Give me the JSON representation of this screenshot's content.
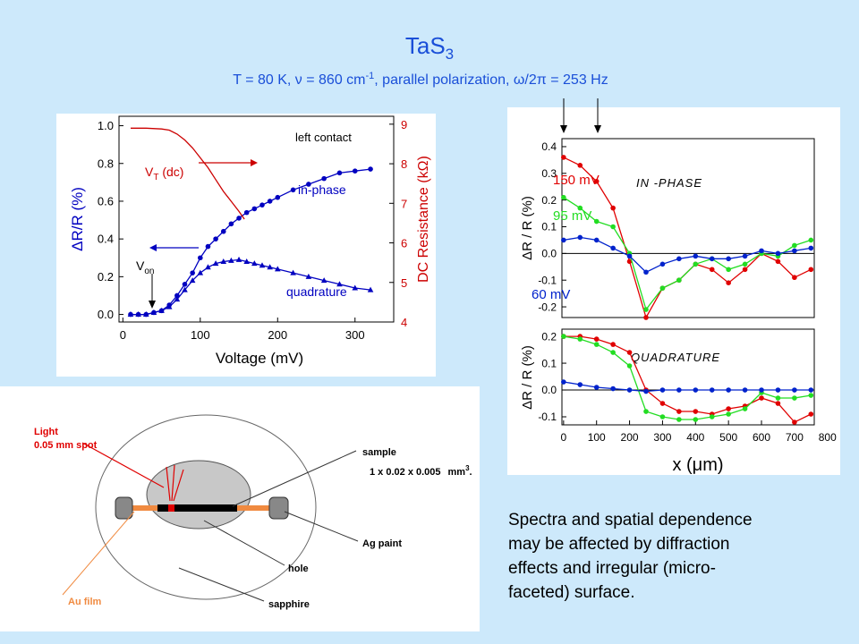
{
  "slide": {
    "title": [
      "TaS",
      "3"
    ],
    "subtitle": [
      "T = 80 K, ν = 860 cm",
      "-1",
      ", parallel polarization, ω/2π = 253 Hz"
    ]
  },
  "chart_data": [
    {
      "type": "line",
      "xlabel": "Voltage (mV)",
      "ylabel": "ΔR/R (%)",
      "y2label": "DC Resistance (kΩ)",
      "xlim": [
        -5,
        350
      ],
      "xticks": [
        0,
        100,
        200,
        300
      ],
      "ylim": [
        -0.04,
        1.05
      ],
      "yticks": [
        {
          "value": 0,
          "label": "0.0"
        },
        {
          "value": 0.2,
          "label": "0.2"
        },
        {
          "value": 0.4,
          "label": "0.4"
        },
        {
          "value": 0.6,
          "label": "0.6"
        },
        {
          "value": 0.8,
          "label": "0.8"
        },
        {
          "value": 1,
          "label": "1.0"
        }
      ],
      "y2lim": [
        4,
        9.2
      ],
      "y2ticks": [
        4,
        5,
        6,
        7,
        8,
        9
      ],
      "annotations": {
        "left_contact": "left contact",
        "vt": [
          "V",
          "T",
          " (dc)"
        ],
        "von": [
          "V",
          "on"
        ]
      },
      "x": [
        10,
        20,
        30,
        40,
        50,
        60,
        70,
        80,
        90,
        100,
        110,
        120,
        130,
        140,
        150,
        160,
        170,
        180,
        190,
        200,
        220,
        240,
        260,
        280,
        300,
        320
      ],
      "series": [
        {
          "name": "in-phase",
          "color": "#0000c0",
          "marker": "circle",
          "values": [
            0,
            0,
            0,
            0.01,
            0.02,
            0.05,
            0.1,
            0.16,
            0.22,
            0.3,
            0.36,
            0.4,
            0.44,
            0.48,
            0.51,
            0.54,
            0.56,
            0.58,
            0.6,
            0.62,
            0.66,
            0.69,
            0.72,
            0.75,
            0.76,
            0.77
          ]
        },
        {
          "name": "quadrature",
          "color": "#0000c0",
          "marker": "triangle",
          "values": [
            0,
            0,
            0,
            0.01,
            0.02,
            0.04,
            0.08,
            0.13,
            0.18,
            0.22,
            0.25,
            0.27,
            0.28,
            0.285,
            0.29,
            0.28,
            0.27,
            0.26,
            0.25,
            0.24,
            0.22,
            0.2,
            0.18,
            0.16,
            0.14,
            0.13
          ]
        },
        {
          "color": "#cc0000",
          "axis": "y2",
          "marker": "none",
          "x": [
            10,
            30,
            50,
            60,
            70,
            80,
            90,
            100,
            110,
            120,
            130,
            140,
            150,
            157
          ],
          "values": [
            8.9,
            8.9,
            8.88,
            8.85,
            8.75,
            8.6,
            8.4,
            8.15,
            7.9,
            7.6,
            7.3,
            7.05,
            6.8,
            6.6
          ]
        }
      ]
    },
    {
      "type": "line",
      "title": "IN -PHASE",
      "ylabel": "ΔR / R (%)",
      "zero_line": true,
      "xlim": [
        -5,
        760
      ],
      "ylim": [
        -0.24,
        0.43
      ],
      "yticks": [
        0.4,
        0.3,
        0.2,
        0.1,
        {
          "value": 0,
          "label": "0.0"
        },
        -0.1,
        -0.2
      ],
      "x": [
        0,
        50,
        100,
        150,
        200,
        250,
        300,
        350,
        400,
        450,
        500,
        550,
        600,
        650,
        700,
        750
      ],
      "series": [
        {
          "name": "150 mV",
          "color": "#e00000",
          "marker": "circle",
          "values": [
            0.36,
            0.33,
            0.27,
            0.17,
            -0.03,
            -0.24,
            -0.13,
            -0.1,
            -0.04,
            -0.06,
            -0.11,
            -0.06,
            0,
            -0.03,
            -0.09,
            -0.06
          ]
        },
        {
          "name": "95 mV",
          "color": "#22dd22",
          "marker": "circle",
          "values": [
            0.21,
            0.17,
            0.12,
            0.1,
            0,
            -0.21,
            -0.13,
            -0.1,
            -0.04,
            -0.02,
            -0.06,
            -0.04,
            0,
            -0.01,
            0.03,
            0.05
          ]
        },
        {
          "name": "60 mV",
          "color": "#0022cc",
          "marker": "circle",
          "values": [
            0.05,
            0.06,
            0.05,
            0.02,
            -0.01,
            -0.07,
            -0.04,
            -0.02,
            -0.01,
            -0.02,
            -0.02,
            -0.01,
            0.01,
            0,
            0.01,
            0.02
          ]
        }
      ]
    },
    {
      "type": "line",
      "title": "QUADRATURE",
      "ylabel": "ΔR / R (%)",
      "xlabel": "x (μm)",
      "zero_line": true,
      "xlim": [
        -5,
        760
      ],
      "xticks": [
        0,
        100,
        200,
        300,
        400,
        500,
        600,
        700,
        800
      ],
      "ylim": [
        -0.13,
        0.227
      ],
      "yticks": [
        0.2,
        0.1,
        {
          "value": 0,
          "label": "0.0"
        },
        -0.1
      ],
      "x": [
        0,
        50,
        100,
        150,
        200,
        250,
        300,
        350,
        400,
        450,
        500,
        550,
        600,
        650,
        700,
        750
      ],
      "series": [
        {
          "color": "#e00000",
          "marker": "circle",
          "values": [
            0.2,
            0.2,
            0.19,
            0.17,
            0.14,
            0,
            -0.05,
            -0.08,
            -0.08,
            -0.09,
            -0.07,
            -0.06,
            -0.03,
            -0.05,
            -0.12,
            -0.09
          ]
        },
        {
          "color": "#22dd22",
          "marker": "circle",
          "values": [
            0.2,
            0.19,
            0.17,
            0.14,
            0.09,
            -0.08,
            -0.1,
            -0.11,
            -0.11,
            -0.1,
            -0.09,
            -0.07,
            -0.01,
            -0.03,
            -0.03,
            -0.02
          ]
        },
        {
          "color": "#0022cc",
          "marker": "circle",
          "values": [
            0.03,
            0.02,
            0.01,
            0.005,
            0,
            -0.005,
            0,
            0,
            0,
            0,
            0,
            0,
            0,
            0,
            0,
            0
          ]
        }
      ]
    }
  ],
  "diagram": {
    "light": "Light",
    "spot": "0.05 mm spot",
    "sample": "sample",
    "size": [
      "1 x 0.02 x 0.005",
      "mm",
      "3",
      "."
    ],
    "ag_paint": "Ag paint",
    "hole": "hole",
    "au_film": "Au film",
    "sapphire": "sapphire"
  },
  "text": {
    "lines": [
      "Spectra and spatial dependence",
      "may be affected by diffraction",
      "effects and irregular (micro-",
      "faceted) surface."
    ]
  }
}
